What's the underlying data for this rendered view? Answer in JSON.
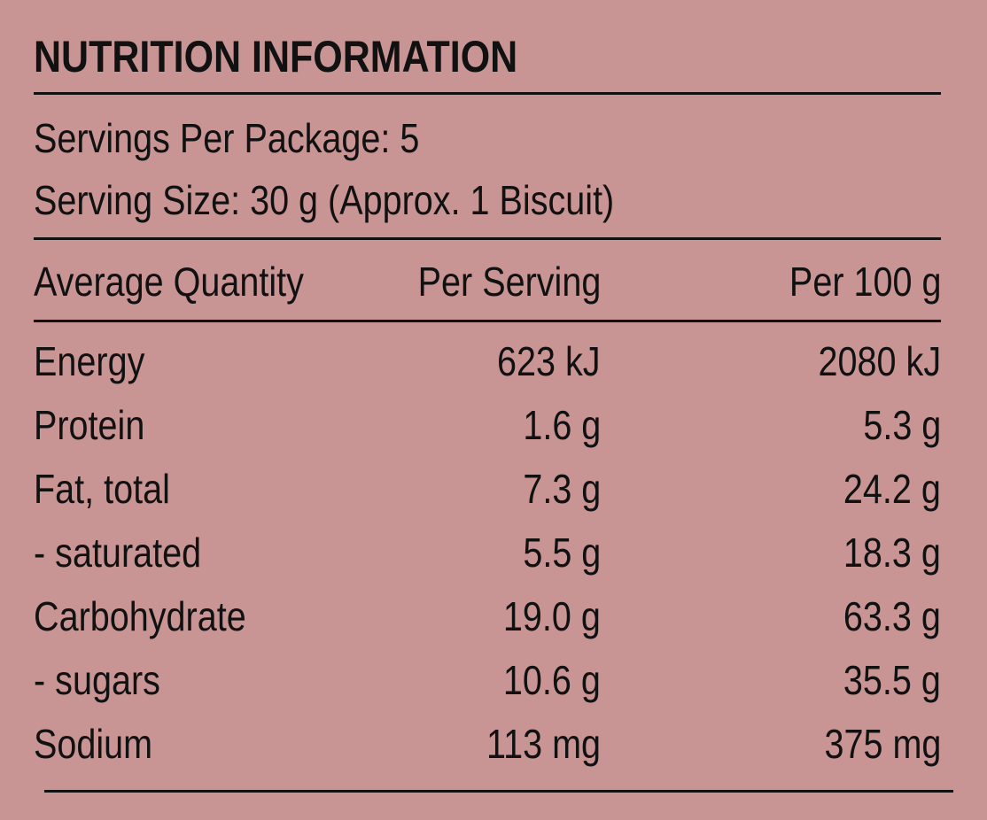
{
  "title": "NUTRITION INFORMATION",
  "servings_per_package": "Servings Per Package: 5",
  "serving_size": "Serving Size: 30 g (Approx. 1 Biscuit)",
  "columns": {
    "name": "Average Quantity",
    "per_serving": "Per Serving",
    "per_100g": "Per 100 g"
  },
  "rows": [
    {
      "name": "Energy",
      "per_serving": "623 kJ",
      "per_100g": "2080 kJ"
    },
    {
      "name": "Protein",
      "per_serving": "1.6 g",
      "per_100g": "5.3 g"
    },
    {
      "name": "Fat, total",
      "per_serving": "7.3 g",
      "per_100g": "24.2 g"
    },
    {
      "name": "- saturated",
      "per_serving": "5.5 g",
      "per_100g": "18.3 g"
    },
    {
      "name": "Carbohydrate",
      "per_serving": "19.0 g",
      "per_100g": "63.3 g"
    },
    {
      "name": "- sugars",
      "per_serving": "10.6 g",
      "per_100g": "35.5 g"
    },
    {
      "name": "Sodium",
      "per_serving": "113 mg",
      "per_100g": "375 mg"
    }
  ],
  "colors": {
    "background": "#c89594",
    "text": "#111111"
  }
}
